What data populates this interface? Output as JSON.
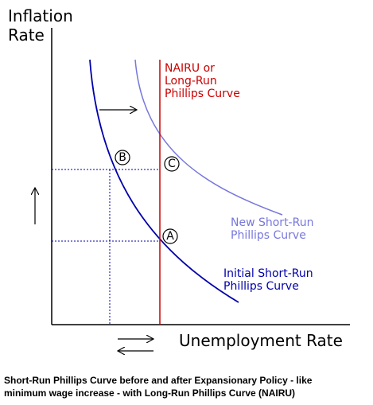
{
  "axes": {
    "y_label": [
      "Inflation",
      "Rate"
    ],
    "x_label": "Unemployment Rate"
  },
  "curves": {
    "nairu": [
      "NAIRU or",
      "Long-Run",
      "Phillips Curve"
    ],
    "new_short_run": [
      "New Short-Run",
      "Phillips Curve"
    ],
    "initial_short_run": [
      "Initial Short-Run",
      "Phillips Curve"
    ]
  },
  "points": [
    "A",
    "B",
    "C"
  ],
  "caption": [
    "Short-Run Phillips Curve before and after Expansionary Policy - like",
    "minimum wage increase - with Long-Run Phillips Curve (NAIRU)"
  ]
}
